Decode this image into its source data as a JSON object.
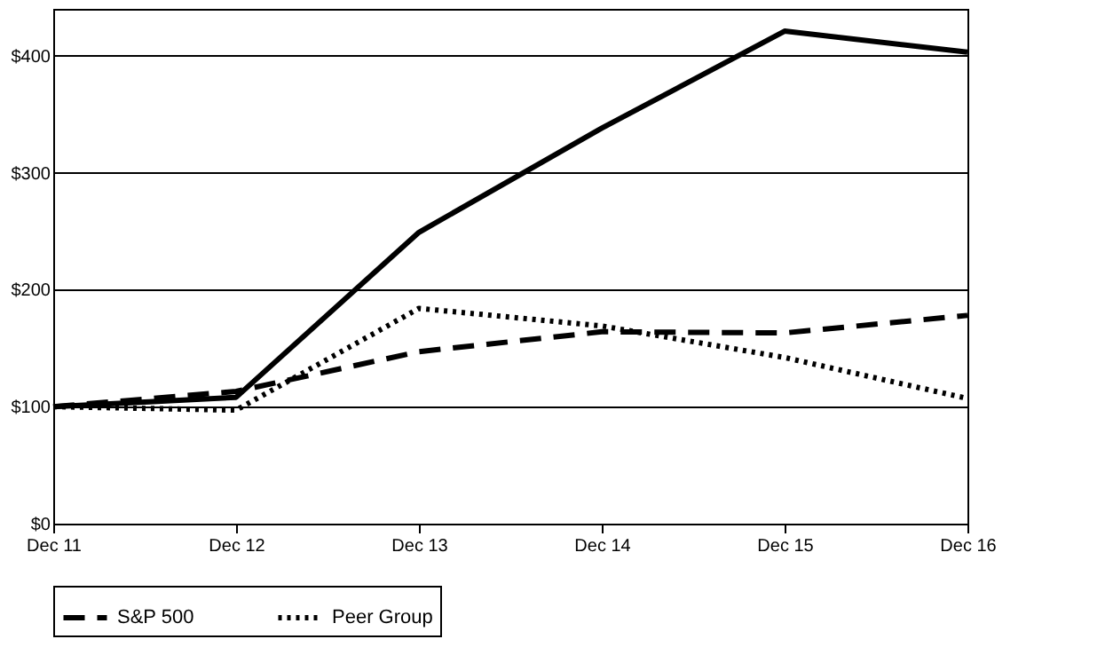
{
  "chart_data": {
    "type": "line",
    "categories": [
      "Dec 11",
      "Dec 12",
      "Dec 13",
      "Dec 14",
      "Dec 15",
      "Dec 16"
    ],
    "series": [
      {
        "color": "#000000",
        "line_style": "solid",
        "values": [
          100,
          108,
          249,
          338,
          421,
          403
        ]
      },
      {
        "name": "S&P 500",
        "color": "#000000",
        "line_style": "dashed",
        "values": [
          100,
          113,
          147,
          164,
          163,
          178
        ]
      },
      {
        "name": "Peer Group",
        "color": "#000000",
        "line_style": "dotted",
        "values": [
          100,
          97,
          184,
          169,
          142,
          107
        ]
      }
    ],
    "ylim": [
      0,
      440
    ],
    "yticks": [
      {
        "value": 0,
        "label": "$0"
      },
      {
        "value": 100,
        "label": "$100"
      },
      {
        "value": 200,
        "label": "$200"
      },
      {
        "value": 300,
        "label": "$300"
      },
      {
        "value": 400,
        "label": "$400"
      }
    ],
    "grid": "y",
    "legend": "bottom",
    "marker": "none"
  }
}
